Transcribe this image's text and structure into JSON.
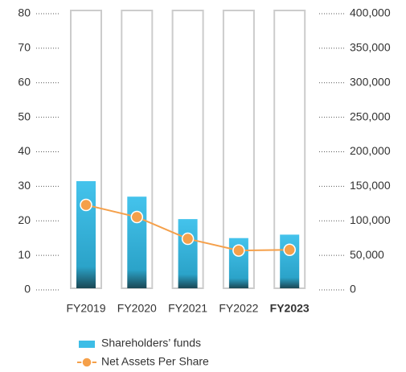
{
  "chart_data": {
    "type": "bar_line",
    "categories": [
      "FY2019",
      "FY2020",
      "FY2021",
      "FY2022",
      "FY2023"
    ],
    "bold_category": 4,
    "series": [
      {
        "name": "Shareholders’ funds",
        "type": "bar",
        "color": "#3dbde6",
        "values": [
          31.5,
          27,
          20.5,
          15,
          16
        ]
      },
      {
        "name": "Net Assets Per Share",
        "type": "line",
        "axis": "y2",
        "color": "#f5a04a",
        "values": [
          123000,
          105500,
          74000,
          57000,
          58000
        ]
      }
    ],
    "ylim": [
      0,
      80
    ],
    "yticks": [
      0,
      10,
      20,
      30,
      40,
      50,
      60,
      70,
      80
    ],
    "y2lim": [
      0,
      400000
    ],
    "y2ticks": [
      0,
      {
        "value": 50000,
        "label": "50,000"
      },
      {
        "value": 100000,
        "label": "100,000"
      },
      {
        "value": 150000,
        "label": "150,000"
      },
      {
        "value": 200000,
        "label": "200,000"
      },
      {
        "value": 250000,
        "label": "250,000"
      },
      {
        "value": 300000,
        "label": "300,000"
      },
      {
        "value": 350000,
        "label": "350,000"
      },
      {
        "value": 400000,
        "label": "400,000"
      }
    ]
  }
}
